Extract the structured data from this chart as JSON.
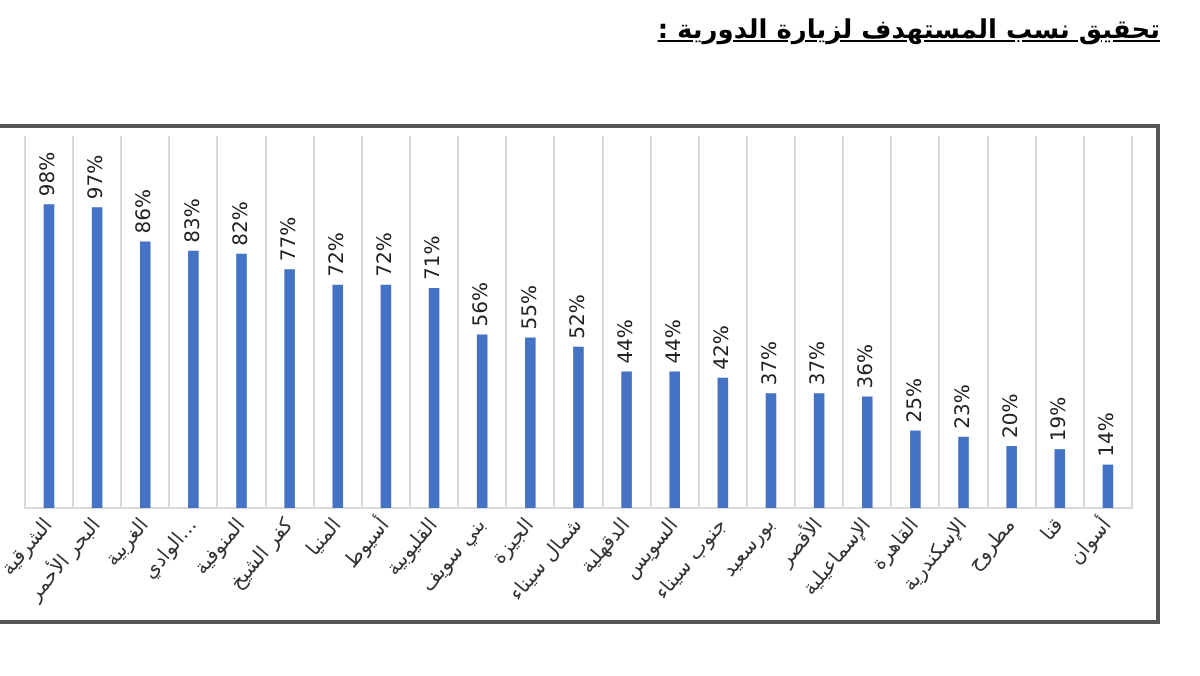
{
  "chart_data": {
    "type": "bar",
    "title": "تحقيق نسب المستهدف لزيارة الدورية :",
    "categories": [
      "الشرقية",
      "البحر الأحمر",
      "الغربية",
      "الوادي...",
      "المنوفية",
      "كفر الشيخ",
      "المنيا",
      "أسيوط",
      "القليوبية",
      "بني سويف",
      "الجيزة",
      "شمال سيناء",
      "الدقهلية",
      "السويس",
      "جنوب سيناء",
      "بورسعيد",
      "الأقصر",
      "الإسماعيلية",
      "القاهرة",
      "الإسكندرية",
      "مطروح",
      "قنا",
      "أسوان"
    ],
    "values": [
      98,
      97,
      86,
      83,
      82,
      77,
      72,
      72,
      71,
      56,
      55,
      52,
      44,
      44,
      42,
      37,
      37,
      36,
      25,
      23,
      20,
      19,
      14
    ],
    "value_labels": [
      "98%",
      "97%",
      "86%",
      "83%",
      "82%",
      "77%",
      "72%",
      "72%",
      "71%",
      "56%",
      "55%",
      "52%",
      "44%",
      "44%",
      "42%",
      "37%",
      "37%",
      "36%",
      "25%",
      "23%",
      "20%",
      "19%",
      "14%"
    ],
    "color": "#4472c4",
    "grid": "x",
    "legend": false
  }
}
